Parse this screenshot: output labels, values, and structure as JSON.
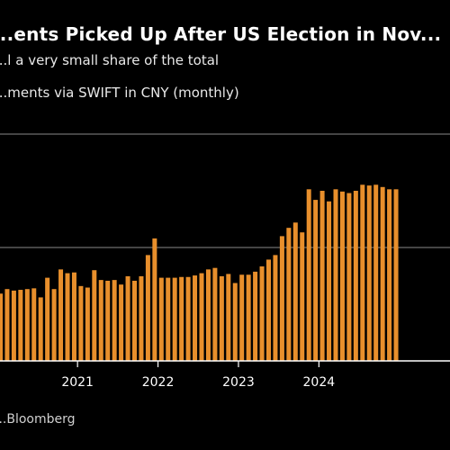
{
  "title": "...ents Picked Up After US Election in Nov...",
  "subtitle": "...l a very small share of the total",
  "series_label": "...ments via SWIFT in CNY (monthly)",
  "source": "...Bloomberg",
  "colors": {
    "bar": "#e88f2c",
    "bar_edge": "#f6a94a",
    "background": "#000000",
    "grid": "#8a8a8a",
    "axis": "#ffffff",
    "text": "#ffffff"
  },
  "chart_data": {
    "type": "bar",
    "title": "",
    "xlabel": "",
    "ylabel": "",
    "ylim": [
      0,
      300
    ],
    "grid": true,
    "gridlines": [
      150,
      300
    ],
    "legend": "none",
    "x_tick_labels": [
      "2021",
      "2022",
      "2023",
      "2024"
    ],
    "x_tick_indices": [
      11,
      23,
      35,
      47
    ],
    "categories": [
      "2020-01",
      "2020-02",
      "2020-03",
      "2020-04",
      "2020-05",
      "2020-06",
      "2020-07",
      "2020-08",
      "2020-09",
      "2020-10",
      "2020-11",
      "2020-12",
      "2021-01",
      "2021-02",
      "2021-03",
      "2021-04",
      "2021-05",
      "2021-06",
      "2021-07",
      "2021-08",
      "2021-09",
      "2021-10",
      "2021-11",
      "2021-12",
      "2022-01",
      "2022-02",
      "2022-03",
      "2022-04",
      "2022-05",
      "2022-06",
      "2022-07",
      "2022-08",
      "2022-09",
      "2022-10",
      "2022-11",
      "2022-12",
      "2023-01",
      "2023-02",
      "2023-03",
      "2023-04",
      "2023-05",
      "2023-06",
      "2023-07",
      "2023-08",
      "2023-09",
      "2023-10",
      "2023-11",
      "2023-12",
      "2024-01",
      "2024-02",
      "2024-03",
      "2024-04",
      "2024-05",
      "2024-06",
      "2024-07",
      "2024-08",
      "2024-09",
      "2024-10",
      "2024-11",
      "2024-12"
    ],
    "values": [
      89,
      95,
      93,
      94,
      95,
      96,
      84,
      110,
      95,
      121,
      116,
      117,
      99,
      97,
      120,
      107,
      106,
      107,
      101,
      112,
      106,
      112,
      140,
      162,
      110,
      110,
      110,
      111,
      111,
      113,
      116,
      121,
      123,
      112,
      115,
      103,
      114,
      114,
      118,
      125,
      134,
      140,
      165,
      176,
      183,
      170,
      227,
      213,
      225,
      211,
      227,
      224,
      222,
      225,
      233,
      232,
      233,
      230,
      227,
      227
    ]
  }
}
